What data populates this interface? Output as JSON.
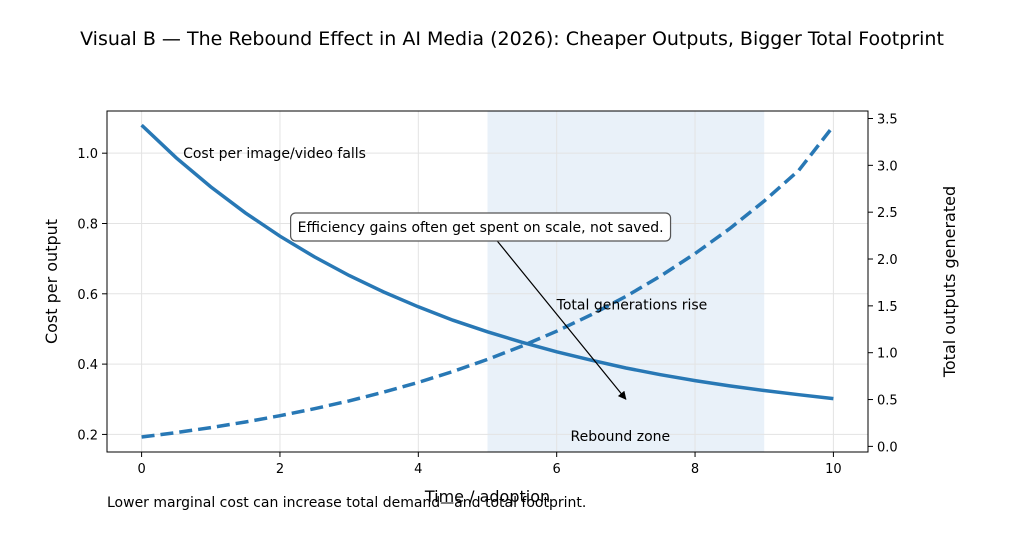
{
  "title": "Visual B — The Rebound Effect in AI Media (2026): Cheaper Outputs, Bigger Total Footprint",
  "caption": "Lower marginal cost can increase total demand—and total footprint.",
  "chart_data": {
    "type": "line",
    "title": "Visual B — The Rebound Effect in AI Media (2026): Cheaper Outputs, Bigger Total Footprint",
    "xlabel": "Time / adoption",
    "ylabel": "Cost per output",
    "y2label": "Total outputs generated",
    "xlim": [
      -0.5,
      10.5
    ],
    "ylim": [
      0.15,
      1.12
    ],
    "y2lim": [
      -0.06,
      3.58
    ],
    "xticks": [
      0,
      2,
      4,
      6,
      8,
      10
    ],
    "yticks": [
      0.2,
      0.4,
      0.6,
      0.8,
      1.0
    ],
    "y2ticks": [
      0.0,
      0.5,
      1.0,
      1.5,
      2.0,
      2.5,
      3.0,
      3.5
    ],
    "grid": true,
    "color": "#2878b5",
    "shade_color": "#e9f1f9",
    "series": [
      {
        "name": "Cost per image/video falls",
        "axis": "left",
        "style": "solid",
        "x": [
          0,
          0.5,
          1,
          1.5,
          2,
          2.5,
          3,
          3.5,
          4,
          4.5,
          5,
          5.5,
          6,
          6.5,
          7,
          7.5,
          8,
          8.5,
          9,
          9.5,
          10
        ],
        "values": [
          1.08,
          0.987,
          0.904,
          0.83,
          0.764,
          0.705,
          0.652,
          0.605,
          0.563,
          0.525,
          0.492,
          0.462,
          0.435,
          0.411,
          0.389,
          0.37,
          0.353,
          0.338,
          0.325,
          0.313,
          0.302
        ]
      },
      {
        "name": "Total generations rise",
        "axis": "right",
        "style": "dashed",
        "x": [
          0,
          0.5,
          1,
          1.5,
          2,
          2.5,
          3,
          3.5,
          4,
          4.5,
          5,
          5.5,
          6,
          6.5,
          7,
          7.5,
          8,
          8.5,
          9,
          9.5,
          10
        ],
        "values": [
          0.1,
          0.147,
          0.2,
          0.26,
          0.327,
          0.402,
          0.486,
          0.579,
          0.683,
          0.799,
          0.928,
          1.071,
          1.23,
          1.406,
          1.601,
          1.818,
          2.058,
          2.324,
          2.619,
          2.946,
          3.42
        ]
      }
    ],
    "shaded_region": {
      "x_start": 5,
      "x_end": 9,
      "label": "Rebound zone"
    },
    "labels": [
      {
        "text": "Cost per image/video falls",
        "x": 0.6,
        "y": 1.0
      },
      {
        "text": "Total generations rise",
        "x": 6.0,
        "y": 0.57
      },
      {
        "text": "Rebound zone",
        "x": 6.2,
        "y": 0.195
      }
    ],
    "annotation": {
      "text": "Efficiency gains often get spent on scale, not saved.",
      "box_x": 4.9,
      "box_y": 0.79,
      "arrow_from": [
        5.1,
        0.76
      ],
      "arrow_to": [
        7.0,
        0.3
      ]
    }
  }
}
